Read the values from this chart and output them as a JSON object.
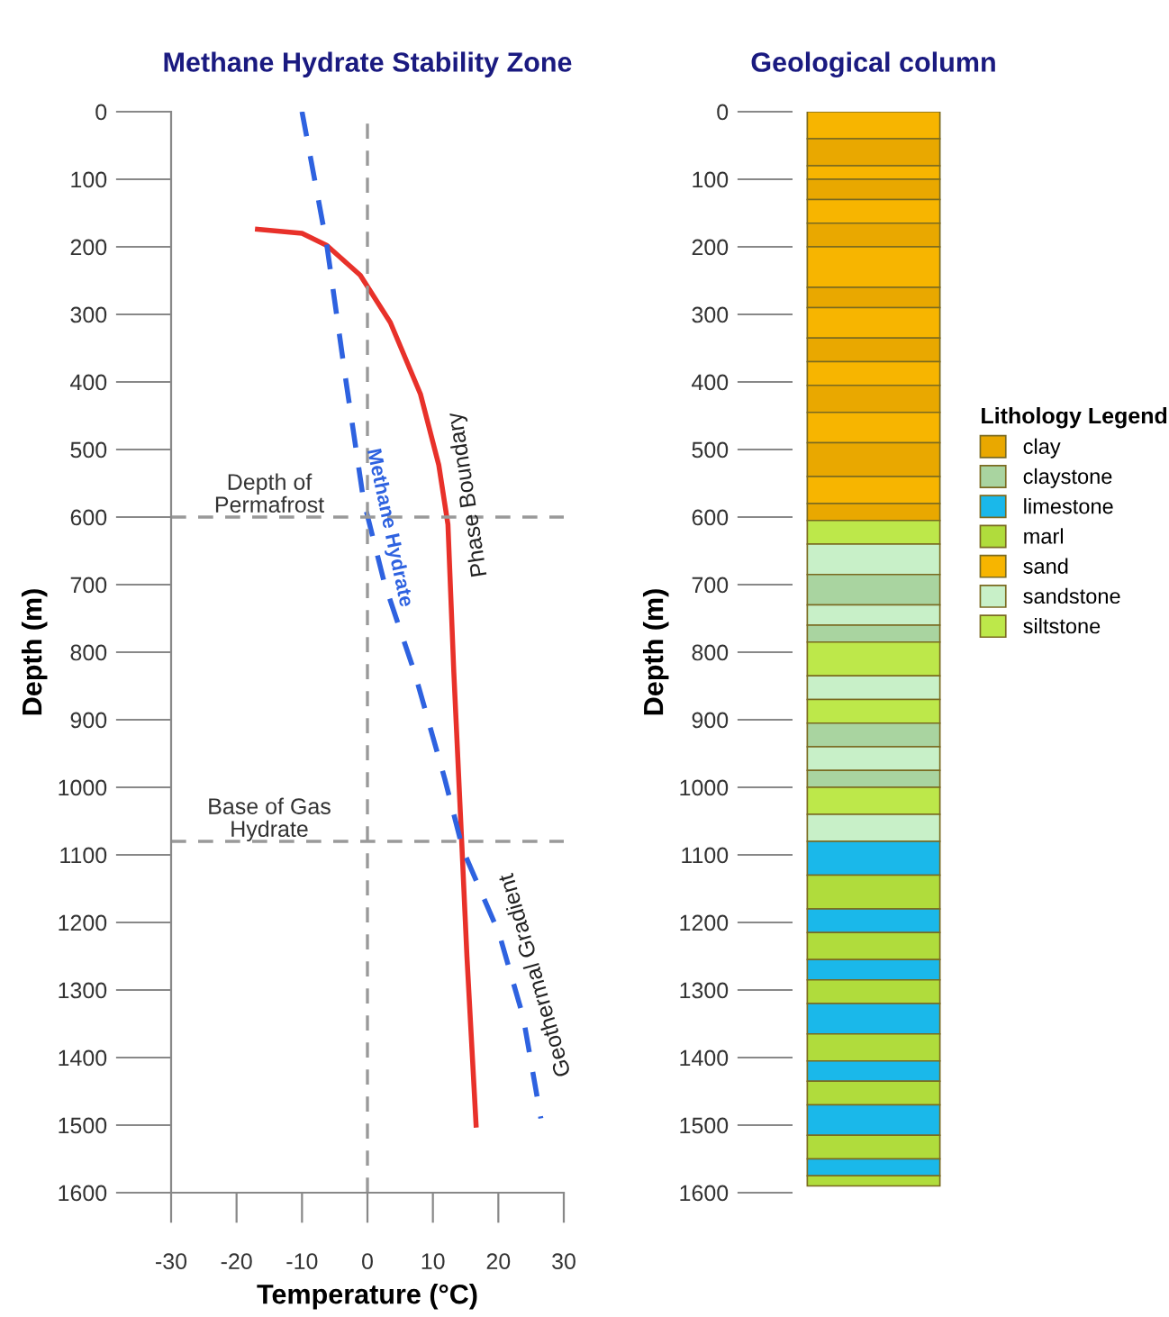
{
  "chart_data": [
    {
      "type": "line",
      "title": "Methane Hydrate Stability Zone",
      "xlabel": "Temperature (°C)",
      "ylabel": "Depth (m)",
      "xlim": [
        -30,
        30
      ],
      "xticks": [
        -30,
        -20,
        -10,
        0,
        10,
        20,
        30
      ],
      "ylim": [
        1600,
        0
      ],
      "yticks": [
        0,
        100,
        200,
        300,
        400,
        500,
        600,
        700,
        800,
        900,
        1000,
        1100,
        1200,
        1300,
        1400,
        1500,
        1600
      ],
      "grid": false,
      "legend": false,
      "marker": "none",
      "series": [
        {
          "name": "Phase Boundary",
          "color": "#e8312a",
          "line_style": "solid",
          "x": [
            -16.8,
            -10,
            -6.2,
            -1.1,
            3.5,
            8.1,
            10.9,
            12.3,
            13.2,
            14.4,
            15.2,
            16.6
          ],
          "values": [
            174,
            180,
            198,
            242,
            312,
            418,
            523,
            611,
            830,
            1080,
            1250,
            1500
          ]
        },
        {
          "name": "Geothermal Gradient",
          "color": "#2e62e0",
          "line_style": "dashed",
          "x": [
            -10,
            -6.2,
            -3.4,
            -0.6,
            2.6,
            7.2,
            11.8,
            14.6,
            20.1,
            23.8,
            26.5
          ],
          "values": [
            0,
            198,
            391,
            575,
            698,
            830,
            987,
            1093,
            1216,
            1340,
            1490
          ]
        }
      ],
      "ref_lines": [
        {
          "axis": "x",
          "value": 0,
          "color": "#999999",
          "line_style": "dashed"
        },
        {
          "axis": "y",
          "value": 600,
          "label": "Depth of\nPermafrost",
          "color": "#999999",
          "line_style": "dashed"
        },
        {
          "axis": "y",
          "value": 1080,
          "label": "Base of Gas\nHydrate",
          "color": "#999999",
          "line_style": "dashed"
        }
      ],
      "annotations": [
        "Methane Hydrate"
      ]
    },
    {
      "type": "bar",
      "title": "Geological column",
      "ylabel": "Depth (m)",
      "legend_title": "Lithology Legend",
      "legend": "right",
      "stacked": true,
      "tick_labels": "y",
      "categories": [
        null
      ],
      "ylim": [
        1600,
        0
      ],
      "yticks": [
        0,
        100,
        200,
        300,
        400,
        500,
        600,
        700,
        800,
        900,
        1000,
        1100,
        1200,
        1300,
        1400,
        1500,
        1600
      ],
      "series": [
        {
          "name": "sand",
          "color": "#f7b500",
          "values": [
            40
          ]
        },
        {
          "name": "clay",
          "color": "#e9a800",
          "values": [
            40
          ]
        },
        {
          "color": "#f7b500",
          "values": [
            20
          ]
        },
        {
          "color": "#e9a800",
          "values": [
            30
          ]
        },
        {
          "color": "#f7b500",
          "values": [
            35
          ]
        },
        {
          "color": "#e9a800",
          "values": [
            35
          ]
        },
        {
          "color": "#f7b500",
          "values": [
            60
          ]
        },
        {
          "color": "#e9a800",
          "values": [
            30
          ]
        },
        {
          "color": "#f7b500",
          "values": [
            45
          ]
        },
        {
          "color": "#e9a800",
          "values": [
            35
          ]
        },
        {
          "color": "#f7b500",
          "values": [
            35
          ]
        },
        {
          "color": "#e9a800",
          "values": [
            40
          ]
        },
        {
          "color": "#f7b500",
          "values": [
            45
          ]
        },
        {
          "color": "#e9a800",
          "values": [
            50
          ]
        },
        {
          "color": "#f7b500",
          "values": [
            40
          ]
        },
        {
          "color": "#e9a800",
          "values": [
            25
          ]
        },
        {
          "name": "siltstone",
          "color": "#bde84a",
          "values": [
            35
          ]
        },
        {
          "name": "sandstone",
          "color": "#c8f0c8",
          "values": [
            45
          ]
        },
        {
          "name": "claystone",
          "color": "#a9d4a0",
          "values": [
            45
          ]
        },
        {
          "color": "#c8f0c8",
          "values": [
            30
          ]
        },
        {
          "color": "#a9d4a0",
          "values": [
            25
          ]
        },
        {
          "color": "#bde84a",
          "values": [
            50
          ]
        },
        {
          "color": "#c8f0c8",
          "values": [
            35
          ]
        },
        {
          "color": "#bde84a",
          "values": [
            35
          ]
        },
        {
          "color": "#a9d4a0",
          "values": [
            35
          ]
        },
        {
          "color": "#c8f0c8",
          "values": [
            35
          ]
        },
        {
          "color": "#a9d4a0",
          "values": [
            25
          ]
        },
        {
          "color": "#bde84a",
          "values": [
            40
          ]
        },
        {
          "color": "#c8f0c8",
          "values": [
            40
          ]
        },
        {
          "name": "limestone",
          "color": "#1ab8ea",
          "values": [
            50
          ]
        },
        {
          "name": "marl",
          "color": "#b0dc3c",
          "values": [
            50
          ]
        },
        {
          "color": "#1ab8ea",
          "values": [
            35
          ]
        },
        {
          "color": "#b0dc3c",
          "values": [
            40
          ]
        },
        {
          "color": "#1ab8ea",
          "values": [
            30
          ]
        },
        {
          "color": "#b0dc3c",
          "values": [
            35
          ]
        },
        {
          "color": "#1ab8ea",
          "values": [
            45
          ]
        },
        {
          "color": "#b0dc3c",
          "values": [
            40
          ]
        },
        {
          "color": "#1ab8ea",
          "values": [
            30
          ]
        },
        {
          "color": "#b0dc3c",
          "values": [
            35
          ]
        },
        {
          "color": "#1ab8ea",
          "values": [
            45
          ]
        },
        {
          "color": "#b0dc3c",
          "values": [
            35
          ]
        },
        {
          "color": "#1ab8ea",
          "values": [
            25
          ]
        },
        {
          "color": "#b0dc3c",
          "values": [
            15
          ]
        }
      ]
    }
  ]
}
